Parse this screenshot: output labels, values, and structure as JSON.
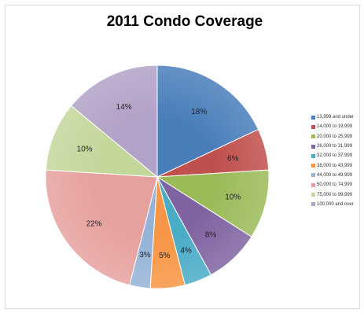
{
  "chart_data": {
    "type": "pie",
    "title": "2011 Condo Coverage",
    "legend_position": "right",
    "slices": [
      {
        "label": "13,999 and under",
        "value": 18,
        "display": "18%",
        "color": "#4a7ebb"
      },
      {
        "label": "14,000 to 19,999",
        "value": 6,
        "display": "6%",
        "color": "#c0504d"
      },
      {
        "label": "20,000 to 25,999",
        "value": 10,
        "display": "10%",
        "color": "#9bbb59"
      },
      {
        "label": "26,000 to 31,999",
        "value": 8,
        "display": "8%",
        "color": "#8064a2"
      },
      {
        "label": "32,000 to 37,999",
        "value": 4,
        "display": "4%",
        "color": "#4bacc6"
      },
      {
        "label": "38,000 to 43,999",
        "value": 5,
        "display": "5%",
        "color": "#f79646"
      },
      {
        "label": "44,000 to 49,999",
        "value": 3,
        "display": "3%",
        "color": "#95b3d7"
      },
      {
        "label": "50,000 to 74,999",
        "value": 22,
        "display": "22%",
        "color": "#e6a19e"
      },
      {
        "label": "75,000 to 99,999",
        "value": 10,
        "display": "10%",
        "color": "#c4d79b"
      },
      {
        "label": "100,000 and over",
        "value": 14,
        "display": "14%",
        "color": "#b3a2c7"
      }
    ]
  }
}
